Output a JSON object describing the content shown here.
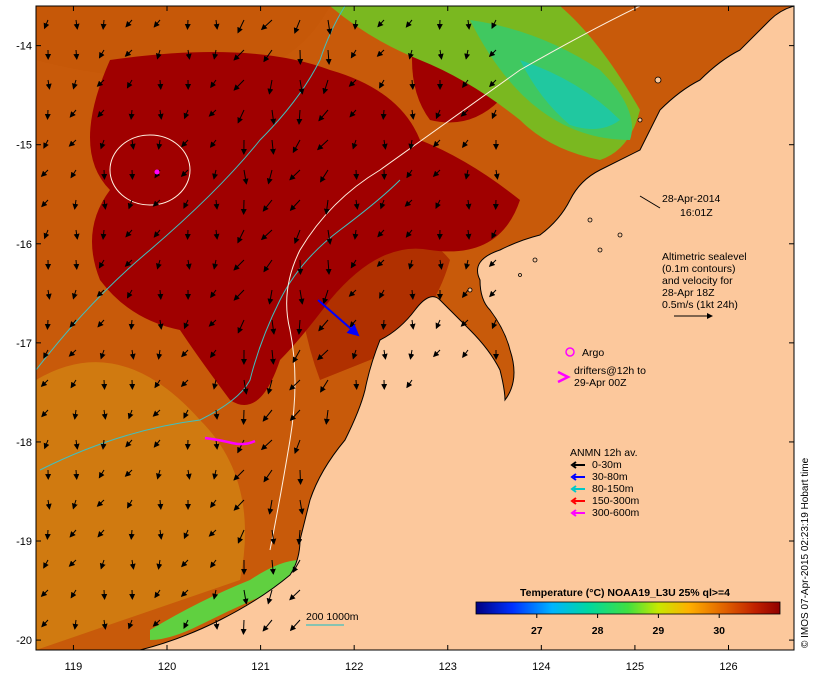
{
  "map": {
    "lon_ticks": [
      "119",
      "120",
      "121",
      "122",
      "123",
      "124",
      "125",
      "126"
    ],
    "lat_ticks": [
      "-14",
      "-15",
      "-16",
      "-17",
      "-18",
      "-19",
      "-20"
    ],
    "lon_range": [
      118.6,
      126.7
    ],
    "lat_range": [
      -20.1,
      -13.6
    ]
  },
  "timestamp": {
    "date": "28-Apr-2014",
    "time": "16:01Z"
  },
  "altimetry_note": [
    "Altimetric sealevel",
    "(0.1m contours)",
    "and velocity for",
    "28-Apr 18Z",
    "0.5m/s (1kt 24h)"
  ],
  "argo_label": "Argo",
  "drifters_label": [
    "drifters@12h to",
    "29-Apr 00Z"
  ],
  "anmn_legend": {
    "title": "ANMN 12h av.",
    "items": [
      {
        "label": "0-30m",
        "color": "#000000"
      },
      {
        "label": "30-80m",
        "color": "#0000ff"
      },
      {
        "label": "80-150m",
        "color": "#00c8c8"
      },
      {
        "label": "150-300m",
        "color": "#ff0000"
      },
      {
        "label": "300-600m",
        "color": "#ff00ff"
      }
    ]
  },
  "bathymetry_label": "200  1000m",
  "colorbar": {
    "title": "Temperature (°C) NOAA19_L3U 25% ql>=4",
    "ticks": [
      "27",
      "28",
      "29",
      "30"
    ],
    "range": [
      26.0,
      31.0
    ]
  },
  "credit": "© IMOS 07-Apr-2015 02:23:19 Hobart time",
  "colors": {
    "land": "#fcc89c",
    "sst_hot": "#a80000",
    "sst_warm": "#c85000",
    "sst_mid": "#d07a10",
    "sst_green": "#50c850",
    "argo": "#ff00ff",
    "contour_200": "#40c0c0"
  }
}
